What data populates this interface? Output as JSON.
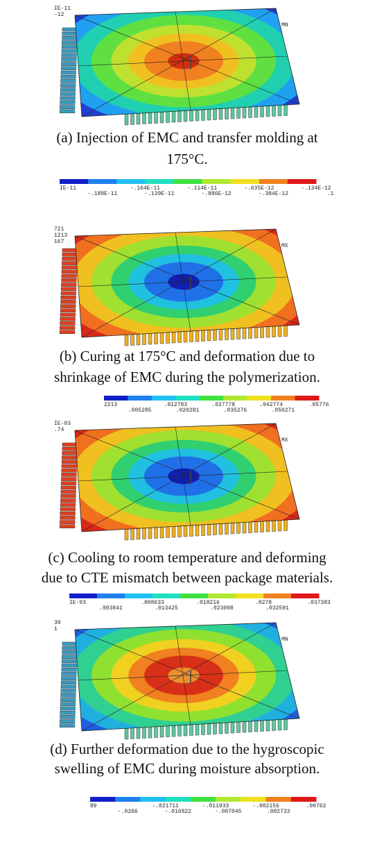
{
  "panels": [
    {
      "corner_labels": [
        "IE-11",
        "-12"
      ],
      "node_label": "MN",
      "caption": [
        "(a) Injection of EMC and transfer molding at",
        "175°C."
      ],
      "colorbar_top": [
        "IE-11",
        "-.164E-11",
        "-.114E-11",
        "-.635E-12",
        "-.134E-12"
      ],
      "colorbar_bottom": [
        "-.189E-11",
        "-.139E-11",
        "-.886E-12",
        "-.384E-12",
        ".1"
      ]
    },
    {
      "corner_labels": [
        "721",
        "1213",
        "167"
      ],
      "node_label": "MX",
      "caption": [
        "(b) Curing at 175°C and deformation due to",
        "shrinkage of EMC during the polymerization."
      ],
      "colorbar_top": [
        "2213",
        ".012783",
        ".027778",
        ".042774",
        ".05776"
      ],
      "colorbar_bottom": [
        ".005285",
        ".020281",
        ".035276",
        ".050271"
      ]
    },
    {
      "corner_labels": [
        "IE-03",
        ".74"
      ],
      "node_label": "MX",
      "caption": [
        "(c) Cooling to room temperature and deforming",
        "due to CTE mismatch between package materials."
      ],
      "colorbar_top": [
        "IE-03",
        ".008633",
        ".018216",
        ".0278",
        ".037383"
      ],
      "colorbar_bottom": [
        ".003841",
        ".013425",
        ".023008",
        ".032591"
      ]
    },
    {
      "corner_labels": [
        "39",
        "1"
      ],
      "node_label": "MN",
      "caption": [
        "(d) Further deformation due to the hygroscopic",
        "swelling of EMC during moisture absorption."
      ],
      "colorbar_top": [
        "89",
        "-.021711",
        "-.011933",
        "-.002156",
        ".00762"
      ],
      "colorbar_bottom": [
        "-.0266",
        "-.016822",
        "-.007045",
        ".002733"
      ]
    }
  ]
}
